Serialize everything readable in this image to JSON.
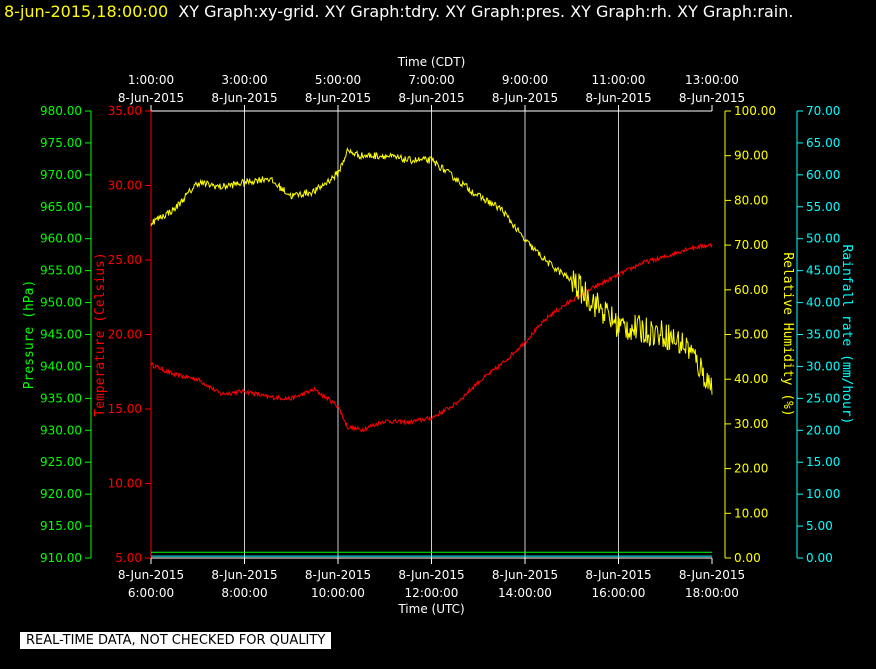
{
  "header": {
    "date_time": "8-jun-2015,18:00:00",
    "graph_names": "XY Graph:xy-grid.  XY Graph:tdry.  XY Graph:pres.  XY Graph:rh.  XY Graph:rain."
  },
  "banner": "REAL-TIME DATA, NOT CHECKED FOR QUALITY",
  "colors": {
    "background": "#000000",
    "pressure": "#00ff00",
    "temperature": "#ff0000",
    "humidity": "#ffff00",
    "rainfall": "#00ffff",
    "grid": "#ffffff",
    "axis_text": "#ffffff"
  },
  "chart_data": {
    "type": "line",
    "x_axis_bottom": {
      "label": "Time (UTC)",
      "ticks": [
        {
          "date": "8-Jun-2015",
          "time": "6:00:00"
        },
        {
          "date": "8-Jun-2015",
          "time": "8:00:00"
        },
        {
          "date": "8-Jun-2015",
          "time": "10:00:00"
        },
        {
          "date": "8-Jun-2015",
          "time": "12:00:00"
        },
        {
          "date": "8-Jun-2015",
          "time": "14:00:00"
        },
        {
          "date": "8-Jun-2015",
          "time": "16:00:00"
        },
        {
          "date": "8-Jun-2015",
          "time": "18:00:00"
        }
      ],
      "range_hours_utc": [
        6,
        18
      ]
    },
    "x_axis_top": {
      "label": "Time (CDT)",
      "ticks": [
        {
          "time": "1:00:00",
          "date": "8-Jun-2015"
        },
        {
          "time": "3:00:00",
          "date": "8-Jun-2015"
        },
        {
          "time": "5:00:00",
          "date": "8-Jun-2015"
        },
        {
          "time": "7:00:00",
          "date": "8-Jun-2015"
        },
        {
          "time": "9:00:00",
          "date": "8-Jun-2015"
        },
        {
          "time": "11:00:00",
          "date": "8-Jun-2015"
        },
        {
          "time": "13:00:00",
          "date": "8-Jun-2015"
        }
      ]
    },
    "axes": {
      "pressure": {
        "label": "Pressure (hPa)",
        "range": [
          910,
          980
        ],
        "ticks": [
          "910.00",
          "915.00",
          "920.00",
          "925.00",
          "930.00",
          "935.00",
          "940.00",
          "945.00",
          "950.00",
          "955.00",
          "960.00",
          "965.00",
          "970.00",
          "975.00",
          "980.00"
        ]
      },
      "temperature": {
        "label": "Temperature (Celsius)",
        "range": [
          5,
          35
        ],
        "ticks": [
          "5.00",
          "10.00",
          "15.00",
          "20.00",
          "25.00",
          "30.00",
          "35.00"
        ]
      },
      "humidity": {
        "label": "Relative Humidity (%)",
        "range": [
          0,
          100
        ],
        "ticks": [
          "0.00",
          "10.00",
          "20.00",
          "30.00",
          "40.00",
          "50.00",
          "60.00",
          "70.00",
          "80.00",
          "90.00",
          "100.00"
        ]
      },
      "rainfall": {
        "label": "Rainfall rate (mm/hour)",
        "range": [
          0,
          70
        ],
        "ticks": [
          "0.00",
          "5.00",
          "10.00",
          "15.00",
          "20.00",
          "25.00",
          "30.00",
          "35.00",
          "40.00",
          "45.00",
          "50.00",
          "55.00",
          "60.00",
          "65.00",
          "70.00"
        ]
      }
    },
    "series": [
      {
        "key": "temperature",
        "x_hours_utc": [
          6.0,
          6.5,
          7.0,
          7.5,
          8.0,
          8.5,
          9.0,
          9.5,
          10.0,
          10.2,
          10.5,
          11.0,
          11.5,
          12.0,
          12.5,
          13.0,
          13.5,
          14.0,
          14.5,
          15.0,
          15.5,
          16.0,
          16.5,
          17.0,
          17.5,
          18.0
        ],
        "values": [
          18.0,
          17.3,
          17.0,
          16.0,
          16.2,
          15.8,
          15.7,
          16.3,
          15.2,
          13.8,
          13.6,
          14.2,
          14.1,
          14.4,
          15.3,
          16.8,
          18.0,
          19.5,
          21.2,
          22.3,
          23.2,
          24.0,
          24.8,
          25.2,
          25.8,
          26.0
        ],
        "noise": 0.15
      },
      {
        "key": "humidity",
        "x_hours_utc": [
          6.0,
          6.5,
          7.0,
          7.5,
          8.0,
          8.5,
          9.0,
          9.5,
          10.0,
          10.2,
          10.5,
          11.0,
          11.5,
          12.0,
          12.5,
          13.0,
          13.5,
          14.0,
          14.5,
          15.0,
          15.5,
          16.0,
          16.5,
          17.0,
          17.5,
          18.0
        ],
        "values": [
          75.0,
          78.0,
          84.0,
          83.0,
          84.0,
          85.0,
          81.0,
          82.0,
          86.0,
          91.0,
          90.0,
          90.0,
          89.0,
          89.0,
          85.0,
          81.0,
          78.0,
          71.0,
          66.0,
          62.0,
          57.0,
          52.0,
          51.0,
          50.0,
          47.0,
          38.0
        ],
        "noise": 0.8
      },
      {
        "key": "pressure",
        "x_hours_utc": [
          6.0,
          18.0
        ],
        "values": [
          910.9,
          910.9
        ],
        "noise": 0
      },
      {
        "key": "rainfall",
        "x_hours_utc": [
          6.0,
          18.0
        ],
        "values": [
          0.3,
          0.3
        ],
        "noise": 0
      }
    ]
  }
}
